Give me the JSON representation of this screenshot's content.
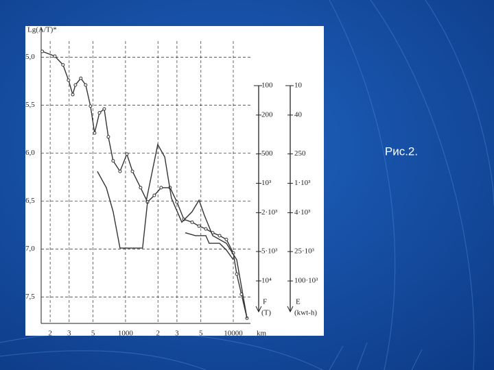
{
  "slide": {
    "caption": "Рис.2."
  },
  "chart_data": {
    "type": "line",
    "y_label": "Lg(A/T)*",
    "x_label": "km",
    "xlog": true,
    "y_reversed": true,
    "grid": true,
    "xlim": [
      165,
      13800
    ],
    "ylim": [
      4.69,
      7.76
    ],
    "xticks": [
      {
        "value": 200,
        "label": "2"
      },
      {
        "value": 300,
        "label": "3"
      },
      {
        "value": 500,
        "label": "5"
      },
      1000,
      {
        "value": 2000,
        "label": "2"
      },
      {
        "value": 3000,
        "label": "3"
      },
      {
        "value": 5000,
        "label": "5"
      },
      10000
    ],
    "yticks": [
      {
        "value": 5.0,
        "label": "5,0"
      },
      {
        "value": 5.5,
        "label": "5,5"
      },
      {
        "value": 6.0,
        "label": "6,0"
      },
      {
        "value": 6.5,
        "label": "6,5"
      },
      {
        "value": 7.0,
        "label": "7,0"
      },
      {
        "value": 7.5,
        "label": "7,5"
      }
    ],
    "f_axis": {
      "title": "F",
      "unit": "(T)",
      "log": true,
      "lim": [
        100,
        20700
      ],
      "ticks": [
        100,
        200,
        500,
        {
          "value": 1000,
          "label": "10³"
        },
        {
          "value": 2000,
          "label": "2·10³"
        },
        {
          "value": 5000,
          "label": "5·10³"
        },
        {
          "value": 10000,
          "label": "10⁴"
        }
      ]
    },
    "e_axis": {
      "title": "E",
      "unit": "(kwt-h)",
      "log": true,
      "lim": [
        10,
        427000
      ],
      "ticks": [
        10,
        40,
        250,
        {
          "value": 1000,
          "label": "1·10³"
        },
        {
          "value": 4000,
          "label": "4·10³"
        },
        {
          "value": 25000,
          "label": "25·10³"
        },
        {
          "value": 100000,
          "label": "100·10³"
        }
      ]
    },
    "series": [
      {
        "color": "#333333",
        "markers": true,
        "x": [
          169,
          221,
          263,
          296,
          324,
          343,
          385,
          427,
          473,
          517,
          573,
          635,
          693,
          768,
          889,
          1030,
          1160,
          1380,
          1600,
          1850,
          2140,
          2590,
          3000,
          3480,
          4150,
          4810,
          5560,
          6440,
          7460,
          8630,
          10000,
          10760,
          11900,
          13400
        ],
        "values": [
          4.94,
          4.99,
          5.08,
          5.24,
          5.39,
          5.29,
          5.22,
          5.29,
          5.51,
          5.79,
          5.58,
          5.54,
          5.83,
          6.08,
          6.19,
          6.01,
          6.19,
          6.36,
          6.51,
          6.44,
          6.36,
          6.36,
          6.51,
          6.69,
          6.72,
          6.76,
          6.79,
          6.83,
          6.86,
          6.9,
          7.04,
          7.26,
          7.47,
          7.72
        ]
      },
      {
        "color": "#333333",
        "markers": false,
        "x": [
          1550,
          1990,
          2310,
          2670,
          3330,
          4150,
          4810,
          5400,
          6440,
          8630,
          10760,
          13400
        ],
        "values": [
          6.51,
          5.91,
          6.04,
          6.47,
          6.72,
          6.61,
          6.49,
          6.65,
          6.86,
          6.94,
          7.11,
          7.72
        ]
      },
      {
        "color": "#333333",
        "markers": false,
        "x": [
          548,
          664,
          768,
          889,
          1440,
          1600
        ],
        "values": [
          6.19,
          6.36,
          6.61,
          6.99,
          6.99,
          6.51
        ]
      },
      {
        "color": "#333333",
        "markers": false,
        "x": [
          3580,
          4460,
          5560,
          5980,
          7460,
          8630,
          10000
        ],
        "values": [
          6.83,
          6.86,
          6.86,
          6.94,
          6.94,
          7.01,
          7.11
        ]
      }
    ]
  }
}
